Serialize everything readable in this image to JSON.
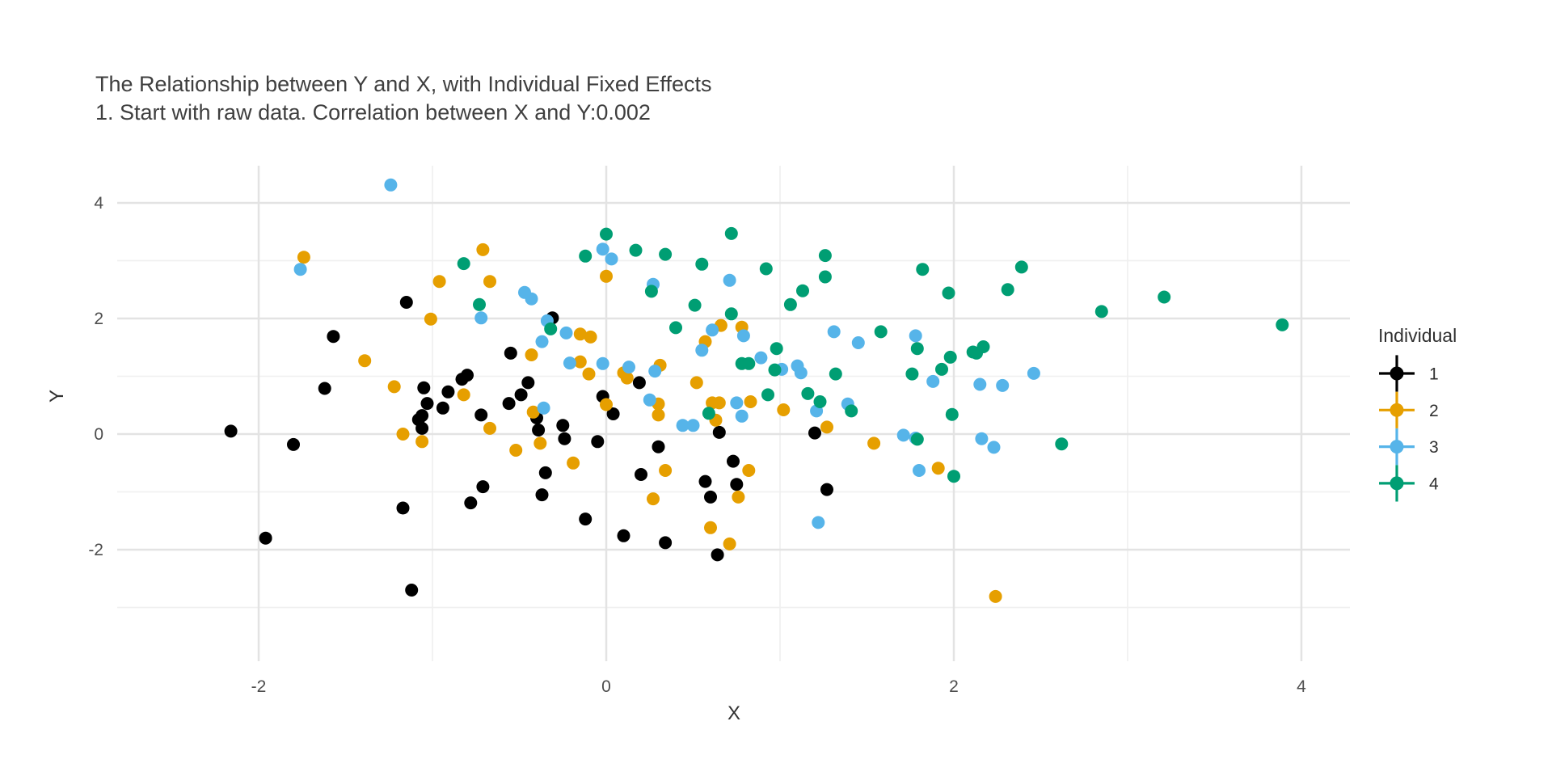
{
  "chart_data": {
    "type": "scatter",
    "title": "The Relationship between Y and X, with Individual Fixed Effects",
    "subtitle": "1. Start with raw data. Correlation between X and Y:0.002",
    "xlabel": "X",
    "ylabel": "Y",
    "x_major_ticks": [
      -2,
      0,
      2,
      4
    ],
    "x_minor_ticks": [
      -1,
      1,
      3
    ],
    "y_major_ticks": [
      -2,
      0,
      2,
      4
    ],
    "y_minor_ticks": [
      -3,
      -1,
      1,
      3
    ],
    "xlim": [
      -2.8,
      4.3
    ],
    "ylim": [
      -4.0,
      4.65
    ],
    "grid": true,
    "legend_position": "right",
    "legend_title": "Individual",
    "series": [
      {
        "name": "1",
        "color": "#000000",
        "points": [
          [
            -2.16,
            0.05
          ],
          [
            -1.96,
            -1.8
          ],
          [
            -1.8,
            -0.18
          ],
          [
            -1.62,
            0.79
          ],
          [
            -1.57,
            1.69
          ],
          [
            -1.17,
            -1.28
          ],
          [
            -1.15,
            2.28
          ],
          [
            -1.12,
            -2.7
          ],
          [
            -1.08,
            0.25
          ],
          [
            -1.06,
            0.32
          ],
          [
            -1.06,
            0.1
          ],
          [
            -1.05,
            0.8
          ],
          [
            -1.03,
            0.53
          ],
          [
            -0.94,
            0.45
          ],
          [
            -0.91,
            0.73
          ],
          [
            -0.83,
            0.95
          ],
          [
            -0.8,
            1.02
          ],
          [
            -0.78,
            -1.19
          ],
          [
            -0.72,
            0.33
          ],
          [
            -0.71,
            -0.91
          ],
          [
            -0.56,
            0.53
          ],
          [
            -0.55,
            1.4
          ],
          [
            -0.49,
            0.68
          ],
          [
            -0.45,
            0.89
          ],
          [
            -0.4,
            0.28
          ],
          [
            -0.39,
            0.07
          ],
          [
            -0.37,
            -1.05
          ],
          [
            -0.35,
            -0.67
          ],
          [
            -0.31,
            2.01
          ],
          [
            -0.25,
            0.15
          ],
          [
            -0.24,
            -0.08
          ],
          [
            -0.12,
            -1.47
          ],
          [
            -0.05,
            -0.13
          ],
          [
            -0.02,
            0.65
          ],
          [
            0.04,
            0.35
          ],
          [
            0.1,
            -1.76
          ],
          [
            0.19,
            0.89
          ],
          [
            0.2,
            -0.7
          ],
          [
            0.3,
            -0.22
          ],
          [
            0.34,
            -1.88
          ],
          [
            0.57,
            -0.82
          ],
          [
            0.6,
            -1.09
          ],
          [
            0.64,
            -2.09
          ],
          [
            0.65,
            0.03
          ],
          [
            0.73,
            -0.47
          ],
          [
            0.75,
            -0.87
          ],
          [
            1.2,
            0.02
          ],
          [
            1.27,
            -0.96
          ]
        ]
      },
      {
        "name": "2",
        "color": "#E69F00",
        "points": [
          [
            -1.74,
            3.06
          ],
          [
            -1.39,
            1.27
          ],
          [
            -1.22,
            0.82
          ],
          [
            -1.17,
            0.0
          ],
          [
            -1.06,
            -0.13
          ],
          [
            -1.01,
            1.99
          ],
          [
            -0.96,
            2.64
          ],
          [
            -0.82,
            0.68
          ],
          [
            -0.71,
            3.19
          ],
          [
            -0.67,
            2.64
          ],
          [
            -0.67,
            0.1
          ],
          [
            -0.52,
            -0.28
          ],
          [
            -0.43,
            1.37
          ],
          [
            -0.42,
            0.38
          ],
          [
            -0.38,
            -0.16
          ],
          [
            -0.19,
            -0.5
          ],
          [
            -0.15,
            1.73
          ],
          [
            -0.15,
            1.25
          ],
          [
            -0.1,
            1.04
          ],
          [
            -0.09,
            1.68
          ],
          [
            0.0,
            2.73
          ],
          [
            0.0,
            0.51
          ],
          [
            0.1,
            1.06
          ],
          [
            0.12,
            0.97
          ],
          [
            0.27,
            -1.12
          ],
          [
            0.3,
            0.52
          ],
          [
            0.3,
            0.33
          ],
          [
            0.31,
            1.19
          ],
          [
            0.34,
            -0.63
          ],
          [
            0.52,
            0.89
          ],
          [
            0.57,
            1.6
          ],
          [
            0.6,
            -1.62
          ],
          [
            0.61,
            0.54
          ],
          [
            0.63,
            0.24
          ],
          [
            0.65,
            0.54
          ],
          [
            0.66,
            1.88
          ],
          [
            0.71,
            -1.9
          ],
          [
            0.76,
            -1.09
          ],
          [
            0.78,
            1.85
          ],
          [
            0.82,
            -0.63
          ],
          [
            0.83,
            0.56
          ],
          [
            1.02,
            0.42
          ],
          [
            1.27,
            0.12
          ],
          [
            1.54,
            -0.16
          ],
          [
            1.91,
            -0.59
          ],
          [
            2.24,
            -2.81
          ]
        ]
      },
      {
        "name": "3",
        "color": "#56B4E9",
        "points": [
          [
            -1.76,
            2.85
          ],
          [
            -1.24,
            4.31
          ],
          [
            -0.72,
            2.01
          ],
          [
            -0.47,
            2.45
          ],
          [
            -0.43,
            2.34
          ],
          [
            -0.37,
            1.6
          ],
          [
            -0.36,
            0.45
          ],
          [
            -0.34,
            1.96
          ],
          [
            -0.23,
            1.75
          ],
          [
            -0.21,
            1.23
          ],
          [
            -0.02,
            3.2
          ],
          [
            -0.02,
            1.22
          ],
          [
            0.03,
            3.03
          ],
          [
            0.13,
            1.16
          ],
          [
            0.25,
            0.59
          ],
          [
            0.27,
            2.59
          ],
          [
            0.28,
            1.09
          ],
          [
            0.44,
            0.15
          ],
          [
            0.5,
            0.15
          ],
          [
            0.55,
            1.45
          ],
          [
            0.61,
            1.8
          ],
          [
            0.71,
            2.66
          ],
          [
            0.75,
            0.54
          ],
          [
            0.78,
            0.31
          ],
          [
            0.79,
            1.7
          ],
          [
            0.89,
            1.32
          ],
          [
            1.01,
            1.12
          ],
          [
            1.1,
            1.18
          ],
          [
            1.12,
            1.06
          ],
          [
            1.21,
            0.4
          ],
          [
            1.22,
            -1.53
          ],
          [
            1.31,
            1.77
          ],
          [
            1.39,
            0.52
          ],
          [
            1.45,
            1.58
          ],
          [
            1.71,
            -0.02
          ],
          [
            1.78,
            -0.07
          ],
          [
            1.78,
            1.7
          ],
          [
            1.8,
            -0.63
          ],
          [
            1.88,
            0.91
          ],
          [
            2.15,
            0.86
          ],
          [
            2.16,
            -0.08
          ],
          [
            2.23,
            -0.23
          ],
          [
            2.28,
            0.84
          ],
          [
            2.46,
            1.05
          ]
        ]
      },
      {
        "name": "4",
        "color": "#009E73",
        "points": [
          [
            -0.82,
            2.95
          ],
          [
            -0.73,
            2.24
          ],
          [
            -0.32,
            1.82
          ],
          [
            -0.12,
            3.08
          ],
          [
            0.0,
            3.46
          ],
          [
            0.17,
            3.18
          ],
          [
            0.26,
            2.47
          ],
          [
            0.34,
            3.11
          ],
          [
            0.4,
            1.84
          ],
          [
            0.51,
            2.23
          ],
          [
            0.55,
            2.94
          ],
          [
            0.59,
            0.36
          ],
          [
            0.72,
            3.47
          ],
          [
            0.72,
            2.08
          ],
          [
            0.78,
            1.22
          ],
          [
            0.82,
            1.22
          ],
          [
            0.92,
            2.86
          ],
          [
            0.93,
            0.68
          ],
          [
            0.97,
            1.11
          ],
          [
            0.98,
            1.48
          ],
          [
            1.06,
            2.24
          ],
          [
            1.13,
            2.48
          ],
          [
            1.16,
            0.7
          ],
          [
            1.23,
            0.56
          ],
          [
            1.26,
            3.09
          ],
          [
            1.26,
            2.72
          ],
          [
            1.32,
            1.04
          ],
          [
            1.41,
            0.4
          ],
          [
            1.58,
            1.77
          ],
          [
            1.76,
            1.04
          ],
          [
            1.79,
            -0.09
          ],
          [
            1.79,
            1.48
          ],
          [
            1.82,
            2.85
          ],
          [
            1.93,
            1.12
          ],
          [
            1.97,
            2.44
          ],
          [
            1.98,
            1.33
          ],
          [
            1.99,
            0.34
          ],
          [
            2.0,
            -0.73
          ],
          [
            2.11,
            1.42
          ],
          [
            2.13,
            1.4
          ],
          [
            2.17,
            1.51
          ],
          [
            2.31,
            2.5
          ],
          [
            2.39,
            2.89
          ],
          [
            2.62,
            -0.17
          ],
          [
            2.85,
            2.12
          ],
          [
            3.21,
            2.37
          ],
          [
            3.89,
            1.89
          ]
        ]
      }
    ]
  }
}
